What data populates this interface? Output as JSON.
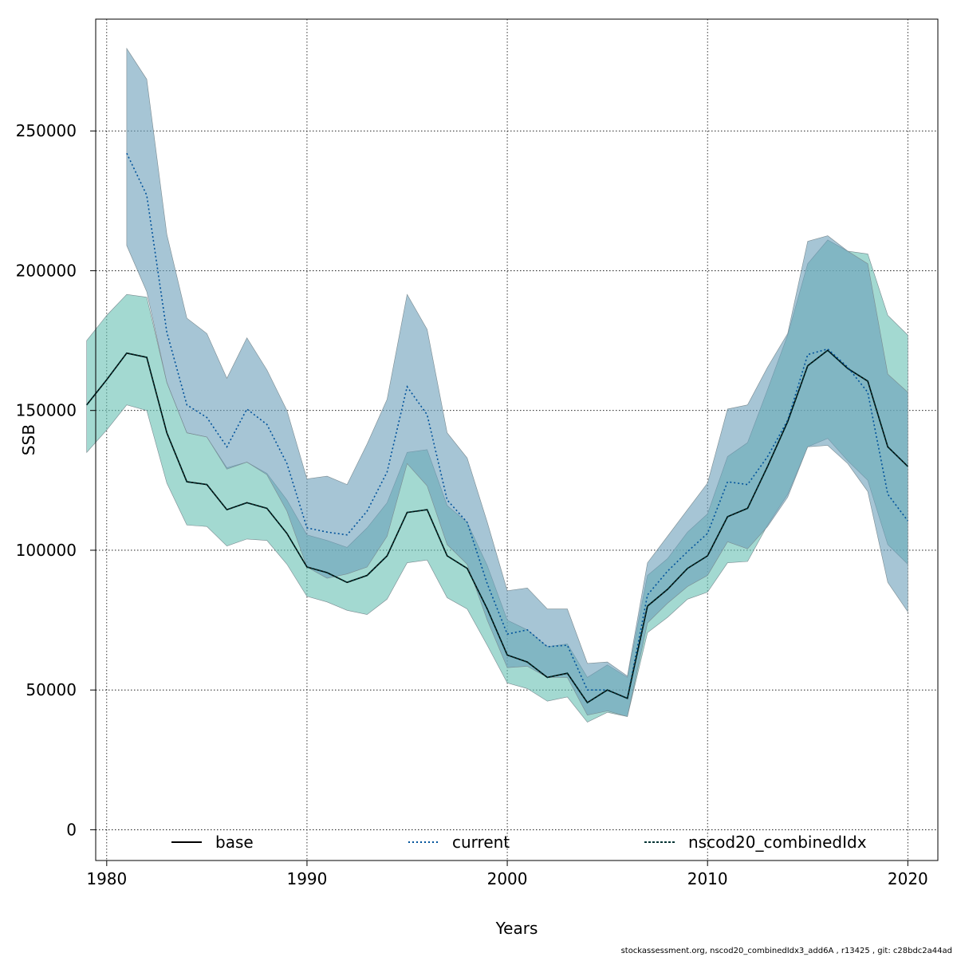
{
  "chart_data": {
    "type": "line",
    "xlabel": "Years",
    "ylabel": "SSB",
    "xlim": [
      1979.45,
      2021.5
    ],
    "ylim": [
      -11000,
      290000
    ],
    "x_ticks": [
      1980,
      1990,
      2000,
      2010,
      2020
    ],
    "y_ticks": [
      0,
      50000,
      100000,
      150000,
      200000,
      250000
    ],
    "grid": true,
    "legend_position": "bottom",
    "colors": {
      "base_band": "#66bfb2",
      "current_band": "#6b9fb9",
      "base_line": "#000000",
      "current_line": "#00529b",
      "combined_line": "#003333"
    },
    "series": [
      {
        "name": "base",
        "line_style": "solid",
        "x": [
          1979,
          1980,
          1981,
          1982,
          1983,
          1984,
          1985,
          1986,
          1987,
          1988,
          1989,
          1990,
          1991,
          1992,
          1993,
          1994,
          1995,
          1996,
          1997,
          1998,
          1999,
          2000,
          2001,
          2002,
          2003,
          2004,
          2005,
          2006,
          2007,
          2008,
          2009,
          2010,
          2011,
          2012,
          2013,
          2014,
          2015,
          2016,
          2017,
          2018,
          2019,
          2020
        ],
        "values": [
          152000,
          161000,
          170500,
          169000,
          142000,
          124500,
          123500,
          114500,
          117000,
          115000,
          106000,
          94000,
          92000,
          88500,
          91000,
          98000,
          113500,
          114500,
          98000,
          93500,
          79000,
          62500,
          60000,
          54500,
          56000,
          45500,
          50000,
          47000,
          80000,
          86000,
          93500,
          98000,
          112000,
          115000,
          130000,
          146000,
          166000,
          171500,
          165000,
          160500,
          137000,
          130000
        ],
        "lower": [
          135000,
          143000,
          152000,
          150000,
          124000,
          109000,
          108500,
          101500,
          104000,
          103500,
          95000,
          83500,
          81500,
          78500,
          77000,
          82500,
          95500,
          96500,
          83000,
          79000,
          66000,
          52500,
          50500,
          46000,
          47500,
          38500,
          42000,
          40500,
          70500,
          76000,
          82500,
          85000,
          95500,
          96000,
          109000,
          120000,
          137000,
          140000,
          132000,
          125000,
          102000,
          95000
        ],
        "upper": [
          175000,
          184000,
          191500,
          190500,
          160000,
          142000,
          140500,
          129500,
          131500,
          127500,
          118000,
          105500,
          103500,
          101000,
          108000,
          117000,
          135000,
          136000,
          116000,
          110000,
          94500,
          75000,
          71500,
          65500,
          66500,
          54500,
          59000,
          54500,
          91000,
          97000,
          106500,
          113000,
          133500,
          138500,
          157500,
          177000,
          202500,
          211000,
          207000,
          206000,
          184000,
          177000
        ]
      },
      {
        "name": "current",
        "line_style": "dotted",
        "x": [
          1981,
          1982,
          1983,
          1984,
          1985,
          1986,
          1987,
          1988,
          1989,
          1990,
          1991,
          1992,
          1993,
          1994,
          1995,
          1996,
          1997,
          1998,
          1999,
          2000,
          2001,
          2002,
          2003,
          2004,
          2005,
          2006,
          2007,
          2008,
          2009,
          2010,
          2011,
          2012,
          2013,
          2014,
          2015,
          2016,
          2017,
          2018,
          2019,
          2020
        ],
        "values": [
          242000,
          227000,
          178000,
          152000,
          147500,
          137000,
          150500,
          145000,
          131000,
          108000,
          106500,
          105500,
          114000,
          128000,
          158500,
          148500,
          118000,
          110000,
          88000,
          70000,
          71500,
          65500,
          66000,
          50000,
          50000,
          47000,
          84000,
          92500,
          99500,
          106000,
          124500,
          123500,
          133500,
          146500,
          170000,
          172000,
          165500,
          156500,
          120000,
          110500
        ],
        "lower": [
          209000,
          192500,
          160000,
          142000,
          140500,
          129000,
          131500,
          127000,
          114000,
          94000,
          90000,
          91500,
          94000,
          105000,
          131000,
          123000,
          102000,
          95000,
          75000,
          58000,
          58500,
          54500,
          54500,
          41000,
          42500,
          40500,
          74000,
          81000,
          87000,
          91000,
          103000,
          100500,
          108500,
          119000,
          137000,
          137500,
          131000,
          121000,
          88500,
          78000
        ],
        "upper": [
          279500,
          268500,
          213000,
          183000,
          177500,
          161500,
          176000,
          164500,
          150000,
          125500,
          126500,
          123500,
          138000,
          154000,
          191500,
          179000,
          142000,
          133000,
          110000,
          85500,
          86500,
          79000,
          79000,
          59500,
          60000,
          55000,
          95500,
          105000,
          114500,
          124000,
          150500,
          152000,
          165500,
          177500,
          210500,
          212500,
          207000,
          202500,
          163000,
          156500
        ]
      },
      {
        "name": "nscod20_combinedIdx",
        "line_style": "dashed",
        "x": [
          1979,
          1980,
          1981,
          1982,
          1983,
          1984,
          1985,
          1986,
          1987,
          1988,
          1989,
          1990,
          1991,
          1992,
          1993,
          1994,
          1995,
          1996,
          1997,
          1998,
          1999,
          2000,
          2001,
          2002,
          2003,
          2004,
          2005,
          2006,
          2007,
          2008,
          2009,
          2010,
          2011,
          2012,
          2013,
          2014,
          2015,
          2016,
          2017,
          2018,
          2019,
          2020
        ],
        "values": [
          152000,
          161000,
          170500,
          169000,
          142000,
          124500,
          123500,
          114500,
          117000,
          115000,
          106000,
          94000,
          92000,
          88500,
          91000,
          98000,
          113500,
          114500,
          98000,
          93500,
          79000,
          62500,
          60000,
          54500,
          56000,
          45500,
          50000,
          47000,
          80000,
          86000,
          93500,
          98000,
          112000,
          115000,
          130000,
          146000,
          166000,
          171500,
          165000,
          160500,
          137000,
          130000
        ]
      }
    ],
    "legend": [
      {
        "label": "base",
        "style": "solid",
        "color": "#000000"
      },
      {
        "label": "current",
        "style": "dotted",
        "color": "#00529b"
      },
      {
        "label": "nscod20_combinedIdx",
        "style": "dashed",
        "color": "#003333"
      }
    ]
  },
  "footer": "stockassessment.org, nscod20_combinedIdx3_add6A , r13425 , git: c28bdc2a44ad"
}
